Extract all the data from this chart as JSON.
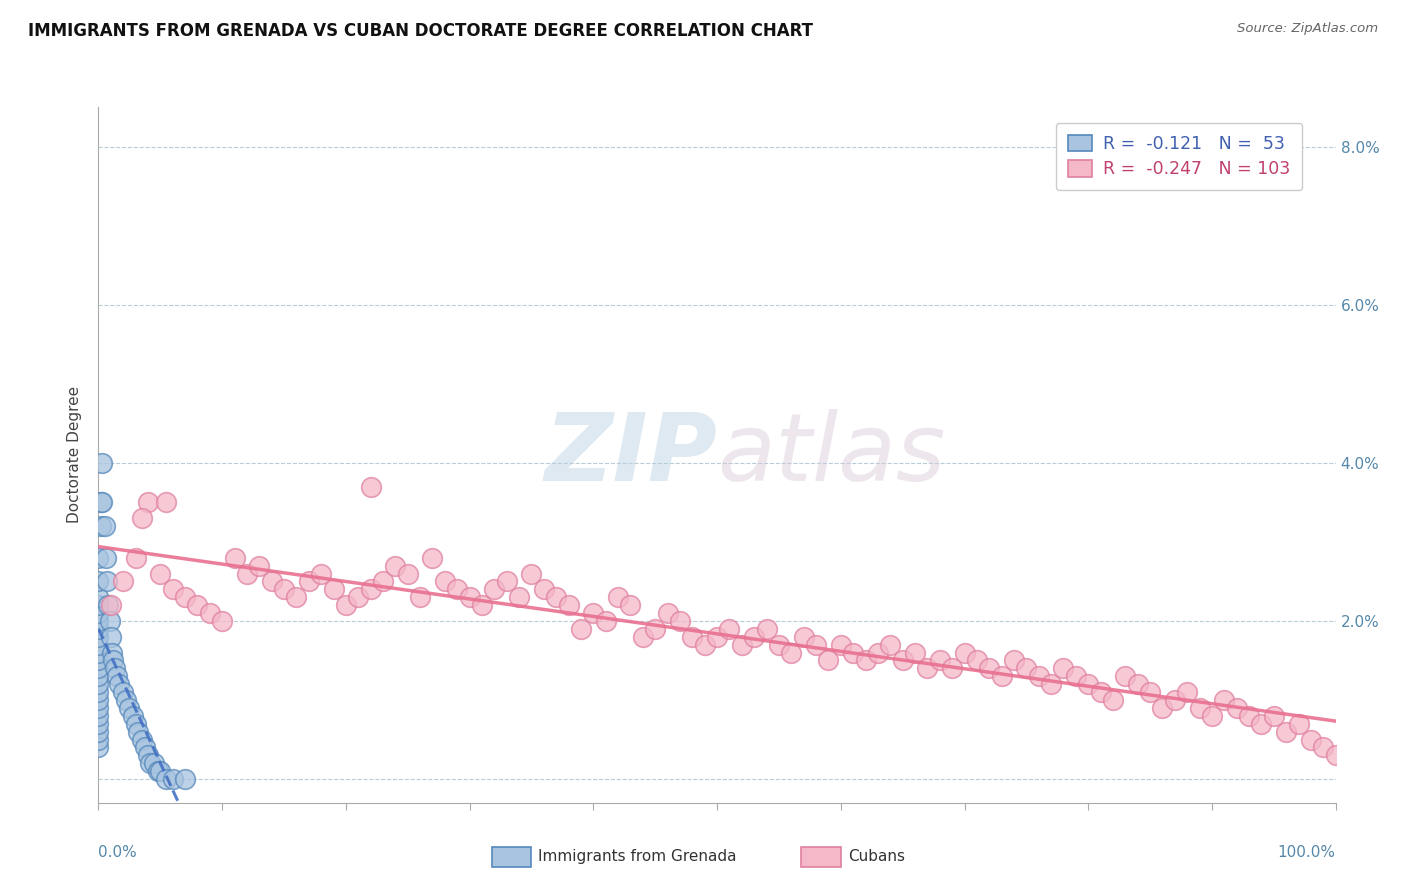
{
  "title": "IMMIGRANTS FROM GRENADA VS CUBAN DOCTORATE DEGREE CORRELATION CHART",
  "source": "Source: ZipAtlas.com",
  "ylabel": "Doctorate Degree",
  "xlim": [
    0.0,
    100.0
  ],
  "ylim": [
    -0.3,
    8.5
  ],
  "legend_r_grenada": "-0.121",
  "legend_n_grenada": "53",
  "legend_r_cubans": "-0.247",
  "legend_n_cubans": "103",
  "color_grenada_fill": "#a8c4e0",
  "color_cubans_fill": "#f4b8c8",
  "color_grenada_edge": "#5588bb",
  "color_cubans_edge": "#e080a0",
  "color_grenada_line": "#4472c4",
  "color_cubans_line": "#e87090",
  "watermark_zip": "ZIP",
  "watermark_atlas": "atlas",
  "legend_label_grenada": "Immigrants from Grenada",
  "legend_label_cubans": "Cubans",
  "grenada_x": [
    0.0,
    0.0,
    0.0,
    0.0,
    0.0,
    0.0,
    0.0,
    0.0,
    0.0,
    0.0,
    0.0,
    0.0,
    0.0,
    0.0,
    0.0,
    0.0,
    0.0,
    0.0,
    0.0,
    0.0,
    0.0,
    0.0,
    0.2,
    0.2,
    0.3,
    0.3,
    0.5,
    0.6,
    0.7,
    0.8,
    0.9,
    1.0,
    1.1,
    1.2,
    1.3,
    1.5,
    1.7,
    2.0,
    2.2,
    2.5,
    2.8,
    3.0,
    3.2,
    3.5,
    3.8,
    4.0,
    4.2,
    4.5,
    4.8,
    5.0,
    5.5,
    6.0,
    7.0
  ],
  "grenada_y": [
    0.4,
    0.5,
    0.6,
    0.7,
    0.8,
    0.9,
    1.0,
    1.1,
    1.2,
    1.3,
    1.4,
    1.5,
    1.6,
    1.7,
    1.8,
    1.9,
    2.0,
    2.1,
    2.2,
    2.3,
    2.5,
    2.8,
    3.2,
    3.5,
    3.5,
    4.0,
    3.2,
    2.8,
    2.5,
    2.2,
    2.0,
    1.8,
    1.6,
    1.5,
    1.4,
    1.3,
    1.2,
    1.1,
    1.0,
    0.9,
    0.8,
    0.7,
    0.6,
    0.5,
    0.4,
    0.3,
    0.2,
    0.2,
    0.1,
    0.1,
    0.0,
    0.0,
    0.0
  ],
  "cubans_x": [
    1.0,
    2.0,
    3.0,
    4.0,
    5.0,
    6.0,
    7.0,
    8.0,
    9.0,
    10.0,
    11.0,
    12.0,
    13.0,
    14.0,
    15.0,
    16.0,
    17.0,
    18.0,
    19.0,
    20.0,
    21.0,
    22.0,
    23.0,
    24.0,
    25.0,
    26.0,
    27.0,
    28.0,
    29.0,
    30.0,
    31.0,
    32.0,
    33.0,
    34.0,
    35.0,
    36.0,
    37.0,
    38.0,
    39.0,
    40.0,
    41.0,
    42.0,
    43.0,
    44.0,
    45.0,
    46.0,
    47.0,
    48.0,
    49.0,
    50.0,
    51.0,
    52.0,
    53.0,
    54.0,
    55.0,
    56.0,
    57.0,
    58.0,
    59.0,
    60.0,
    61.0,
    62.0,
    63.0,
    64.0,
    65.0,
    66.0,
    67.0,
    68.0,
    69.0,
    70.0,
    71.0,
    72.0,
    73.0,
    74.0,
    75.0,
    76.0,
    77.0,
    78.0,
    79.0,
    80.0,
    81.0,
    82.0,
    83.0,
    84.0,
    85.0,
    86.0,
    87.0,
    88.0,
    89.0,
    90.0,
    91.0,
    92.0,
    93.0,
    94.0,
    95.0,
    96.0,
    97.0,
    98.0,
    99.0,
    100.0,
    3.5,
    5.5,
    22.0
  ],
  "cubans_y": [
    2.2,
    2.5,
    2.8,
    3.5,
    2.6,
    2.4,
    2.3,
    2.2,
    2.1,
    2.0,
    2.8,
    2.6,
    2.7,
    2.5,
    2.4,
    2.3,
    2.5,
    2.6,
    2.4,
    2.2,
    2.3,
    2.4,
    2.5,
    2.7,
    2.6,
    2.3,
    2.8,
    2.5,
    2.4,
    2.3,
    2.2,
    2.4,
    2.5,
    2.3,
    2.6,
    2.4,
    2.3,
    2.2,
    1.9,
    2.1,
    2.0,
    2.3,
    2.2,
    1.8,
    1.9,
    2.1,
    2.0,
    1.8,
    1.7,
    1.8,
    1.9,
    1.7,
    1.8,
    1.9,
    1.7,
    1.6,
    1.8,
    1.7,
    1.5,
    1.7,
    1.6,
    1.5,
    1.6,
    1.7,
    1.5,
    1.6,
    1.4,
    1.5,
    1.4,
    1.6,
    1.5,
    1.4,
    1.3,
    1.5,
    1.4,
    1.3,
    1.2,
    1.4,
    1.3,
    1.2,
    1.1,
    1.0,
    1.3,
    1.2,
    1.1,
    0.9,
    1.0,
    1.1,
    0.9,
    0.8,
    1.0,
    0.9,
    0.8,
    0.7,
    0.8,
    0.6,
    0.7,
    0.5,
    0.4,
    0.3,
    3.3,
    3.5,
    3.7
  ]
}
